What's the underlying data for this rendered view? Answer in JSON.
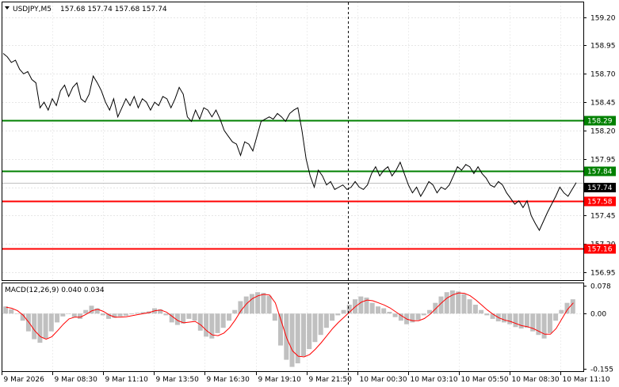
{
  "header": {
    "symbol": "USDJPY,M5",
    "ohlc": "157.68 157.74 157.68 157.74",
    "menu_icon": "triangle-down-icon"
  },
  "macd_header": "MACD(12,26,9) 0.040 0.034",
  "chart_data": [
    {
      "type": "line",
      "title": "",
      "price_axis_ticks": [
        "159.20",
        "158.95",
        "158.70",
        "158.45",
        "158.20",
        "157.95",
        "157.70",
        "157.45",
        "157.20",
        "156.95"
      ],
      "ylim": [
        156.88,
        159.33
      ],
      "current_price": "157.74",
      "levels": [
        {
          "label": "158.29",
          "value": 158.29,
          "color": "#008000"
        },
        {
          "label": "157.84",
          "value": 157.84,
          "color": "#008000"
        },
        {
          "label": "157.58",
          "value": 157.58,
          "color": "#ff0000"
        },
        {
          "label": "157.16",
          "value": 157.16,
          "color": "#ff0000"
        }
      ],
      "time_labels": [
        "9 Mar 2026",
        "9 Mar 08:30",
        "9 Mar 11:10",
        "9 Mar 13:50",
        "9 Mar 16:30",
        "9 Mar 19:10",
        "9 Mar 21:50",
        "10 Mar 00:30",
        "10 Mar 03:10",
        "10 Mar 05:50",
        "10 Mar 08:30",
        "10 Mar 11:10"
      ],
      "series": [
        {
          "values": [
            158.88,
            158.85,
            158.8,
            158.82,
            158.74,
            158.7,
            158.72,
            158.65,
            158.62,
            158.4,
            158.45,
            158.38,
            158.48,
            158.42,
            158.55,
            158.6,
            158.5,
            158.58,
            158.62,
            158.48,
            158.45,
            158.52,
            158.68,
            158.62,
            158.55,
            158.45,
            158.38,
            158.48,
            158.32,
            158.4,
            158.48,
            158.42,
            158.5,
            158.4,
            158.48,
            158.45,
            158.38,
            158.45,
            158.42,
            158.5,
            158.48,
            158.4,
            158.48,
            158.58,
            158.52,
            158.32,
            158.28,
            158.38,
            158.3,
            158.4,
            158.38,
            158.32,
            158.38,
            158.3,
            158.2,
            158.15,
            158.1,
            158.08,
            157.98,
            158.1,
            158.08,
            158.02,
            158.15,
            158.28,
            158.3,
            158.32,
            158.3,
            158.35,
            158.32,
            158.28,
            158.35,
            158.38,
            158.4,
            158.2,
            157.95,
            157.8,
            157.7,
            157.85,
            157.8,
            157.72,
            157.75,
            157.68,
            157.7,
            157.72,
            157.68,
            157.7,
            157.75,
            157.7,
            157.68,
            157.72,
            157.82,
            157.88,
            157.8,
            157.85,
            157.88,
            157.8,
            157.85,
            157.92,
            157.82,
            157.72,
            157.65,
            157.7,
            157.62,
            157.68,
            157.75,
            157.72,
            157.65,
            157.7,
            157.68,
            157.72,
            157.8,
            157.88,
            157.85,
            157.9,
            157.88,
            157.82,
            157.88,
            157.82,
            157.78,
            157.72,
            157.7,
            157.75,
            157.72,
            157.65,
            157.6,
            157.55,
            157.58,
            157.52,
            157.58,
            157.45,
            157.38,
            157.32,
            157.4,
            157.48,
            157.55,
            157.62,
            157.7,
            157.65,
            157.62,
            157.68,
            157.74
          ]
        }
      ]
    },
    {
      "type": "bar",
      "title": "MACD(12,26,9)",
      "values_label": "0.040 0.034",
      "axis_ticks": [
        "0.078",
        "0.00",
        "-0.155"
      ],
      "ylim": [
        -0.162,
        0.085
      ],
      "series": [
        {
          "name": "histogram",
          "color": "#c0c0c0",
          "values": [
            0.02,
            0.012,
            0.0,
            -0.02,
            -0.05,
            -0.072,
            -0.082,
            -0.07,
            -0.05,
            -0.025,
            -0.008,
            0.0,
            -0.01,
            -0.015,
            0.01,
            0.022,
            0.015,
            -0.005,
            -0.015,
            -0.012,
            -0.008,
            -0.006,
            -0.002,
            0.002,
            0.004,
            0.006,
            0.015,
            0.012,
            -0.005,
            -0.025,
            -0.032,
            -0.028,
            -0.015,
            -0.02,
            -0.048,
            -0.065,
            -0.07,
            -0.055,
            -0.04,
            -0.02,
            0.01,
            0.035,
            0.048,
            0.055,
            0.06,
            0.058,
            0.05,
            -0.02,
            -0.09,
            -0.13,
            -0.15,
            -0.14,
            -0.12,
            -0.1,
            -0.08,
            -0.06,
            -0.04,
            -0.02,
            -0.005,
            0.01,
            0.025,
            0.04,
            0.048,
            0.045,
            0.03,
            0.02,
            0.015,
            0.005,
            -0.01,
            -0.02,
            -0.03,
            -0.025,
            -0.018,
            -0.005,
            0.01,
            0.03,
            0.048,
            0.06,
            0.065,
            0.062,
            0.055,
            0.04,
            0.025,
            0.01,
            -0.005,
            -0.015,
            -0.022,
            -0.025,
            -0.03,
            -0.038,
            -0.042,
            -0.04,
            -0.05,
            -0.06,
            -0.07,
            -0.055,
            -0.02,
            0.01,
            0.03,
            0.04
          ]
        },
        {
          "name": "signal",
          "color": "#ff0000",
          "values": [
            0.018,
            0.015,
            0.008,
            -0.005,
            -0.025,
            -0.048,
            -0.065,
            -0.072,
            -0.065,
            -0.048,
            -0.03,
            -0.015,
            -0.01,
            -0.01,
            -0.002,
            0.008,
            0.012,
            0.006,
            -0.004,
            -0.01,
            -0.01,
            -0.009,
            -0.006,
            -0.003,
            0.0,
            0.003,
            0.008,
            0.01,
            0.004,
            -0.008,
            -0.02,
            -0.026,
            -0.024,
            -0.022,
            -0.032,
            -0.048,
            -0.06,
            -0.062,
            -0.055,
            -0.04,
            -0.018,
            0.008,
            0.028,
            0.042,
            0.05,
            0.054,
            0.052,
            0.03,
            -0.02,
            -0.07,
            -0.105,
            -0.12,
            -0.122,
            -0.115,
            -0.1,
            -0.082,
            -0.062,
            -0.042,
            -0.025,
            -0.01,
            0.005,
            0.02,
            0.032,
            0.038,
            0.036,
            0.03,
            0.024,
            0.016,
            0.005,
            -0.006,
            -0.016,
            -0.02,
            -0.02,
            -0.014,
            -0.002,
            0.014,
            0.03,
            0.044,
            0.053,
            0.058,
            0.057,
            0.05,
            0.038,
            0.024,
            0.01,
            -0.002,
            -0.012,
            -0.018,
            -0.022,
            -0.028,
            -0.034,
            -0.037,
            -0.042,
            -0.05,
            -0.058,
            -0.058,
            -0.042,
            -0.015,
            0.012,
            0.03
          ]
        }
      ]
    }
  ]
}
